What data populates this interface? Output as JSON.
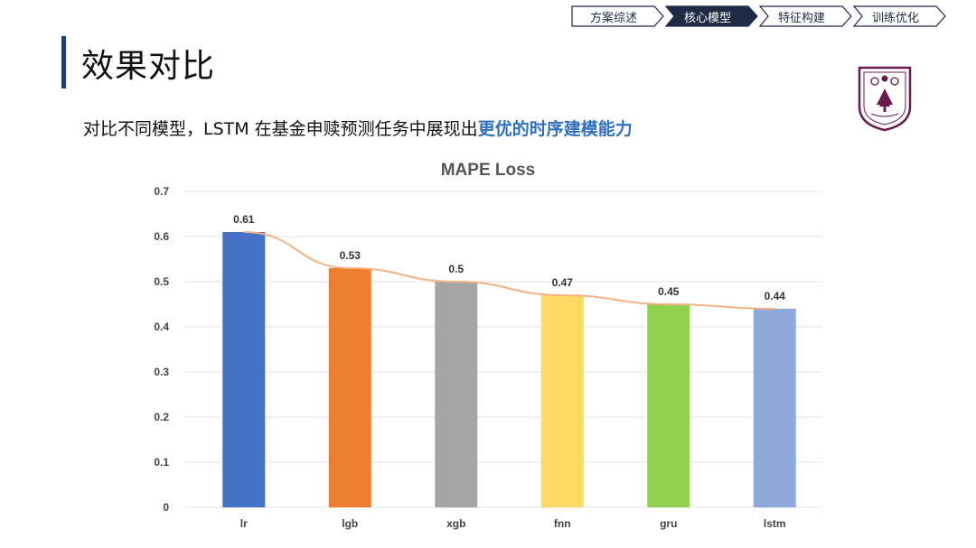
{
  "nav": {
    "steps": [
      {
        "label": "方案综述",
        "active": false
      },
      {
        "label": "核心模型",
        "active": true
      },
      {
        "label": "特征构建",
        "active": false
      },
      {
        "label": "训练优化",
        "active": false
      }
    ]
  },
  "header": {
    "title": "效果对比",
    "subtitle_plain": "对比不同模型，LSTM 在基金申赎预测任务中展现出",
    "subtitle_highlight": "更优的时序建模能力"
  },
  "logo": {
    "icon": "university-seal-icon",
    "color": "#6a1b4d"
  },
  "colors": {
    "nav_active": "#1f2a44",
    "title_bar": "#1f3b78",
    "highlight": "#2f6fc1",
    "trend_line": "#f4b183"
  },
  "chart_data": {
    "type": "bar",
    "title": "MAPE Loss",
    "categories": [
      "lr",
      "lgb",
      "xgb",
      "fnn",
      "gru",
      "lstm"
    ],
    "values": [
      0.61,
      0.53,
      0.5,
      0.47,
      0.45,
      0.44
    ],
    "value_labels": [
      "0.61",
      "0.53",
      "0.5",
      "0.47",
      "0.45",
      "0.44"
    ],
    "bar_colors": [
      "#4472c4",
      "#ed7d31",
      "#a5a5a5",
      "#ffd966",
      "#92d050",
      "#8eaadb"
    ],
    "yticks": [
      "0",
      "0.1",
      "0.2",
      "0.3",
      "0.4",
      "0.5",
      "0.6",
      "0.7"
    ],
    "ylim": [
      0,
      0.7
    ],
    "grid": true,
    "trend_line": true,
    "xlabel": "",
    "ylabel": ""
  }
}
